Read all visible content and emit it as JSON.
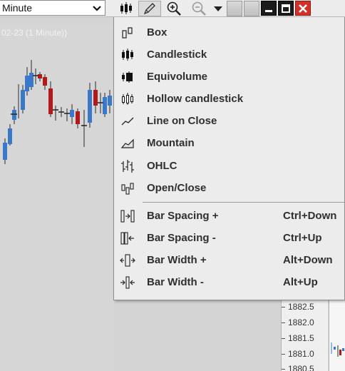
{
  "interval": {
    "value": "Minute"
  },
  "chart": {
    "caption": "02-23 (1 Minute))"
  },
  "price_axis": {
    "labels": [
      "1882.5",
      "1882.0",
      "1881.5",
      "1881.0",
      "1880.5"
    ]
  },
  "toolbar": {
    "icons": [
      "candlestick-icon",
      "pencil-icon",
      "zoom-in-icon",
      "zoom-out-icon",
      "dropdown-arrow-icon",
      "minimize-icon",
      "maximize-icon",
      "close-icon"
    ]
  },
  "menu": {
    "chart_styles": [
      {
        "label": "Box",
        "icon": "box-icon"
      },
      {
        "label": "Candlestick",
        "icon": "candlestick-icon"
      },
      {
        "label": "Equivolume",
        "icon": "equivolume-icon"
      },
      {
        "label": "Hollow candlestick",
        "icon": "hollow-candlestick-icon"
      },
      {
        "label": "Line on Close",
        "icon": "line-icon"
      },
      {
        "label": "Mountain",
        "icon": "mountain-icon"
      },
      {
        "label": "OHLC",
        "icon": "ohlc-icon"
      },
      {
        "label": "Open/Close",
        "icon": "open-close-icon"
      }
    ],
    "spacing_items": [
      {
        "label": "Bar Spacing +",
        "shortcut": "Ctrl+Down",
        "icon": "bar-spacing-plus-icon"
      },
      {
        "label": "Bar Spacing -",
        "shortcut": "Ctrl+Up",
        "icon": "bar-spacing-minus-icon"
      },
      {
        "label": "Bar Width +",
        "shortcut": "Alt+Down",
        "icon": "bar-width-plus-icon"
      },
      {
        "label": "Bar Width -",
        "shortcut": "Alt+Up",
        "icon": "bar-width-minus-icon"
      }
    ]
  },
  "colors": {
    "up": "#3a78c9",
    "down": "#b11a1a",
    "wick": "#2a2a2a"
  }
}
